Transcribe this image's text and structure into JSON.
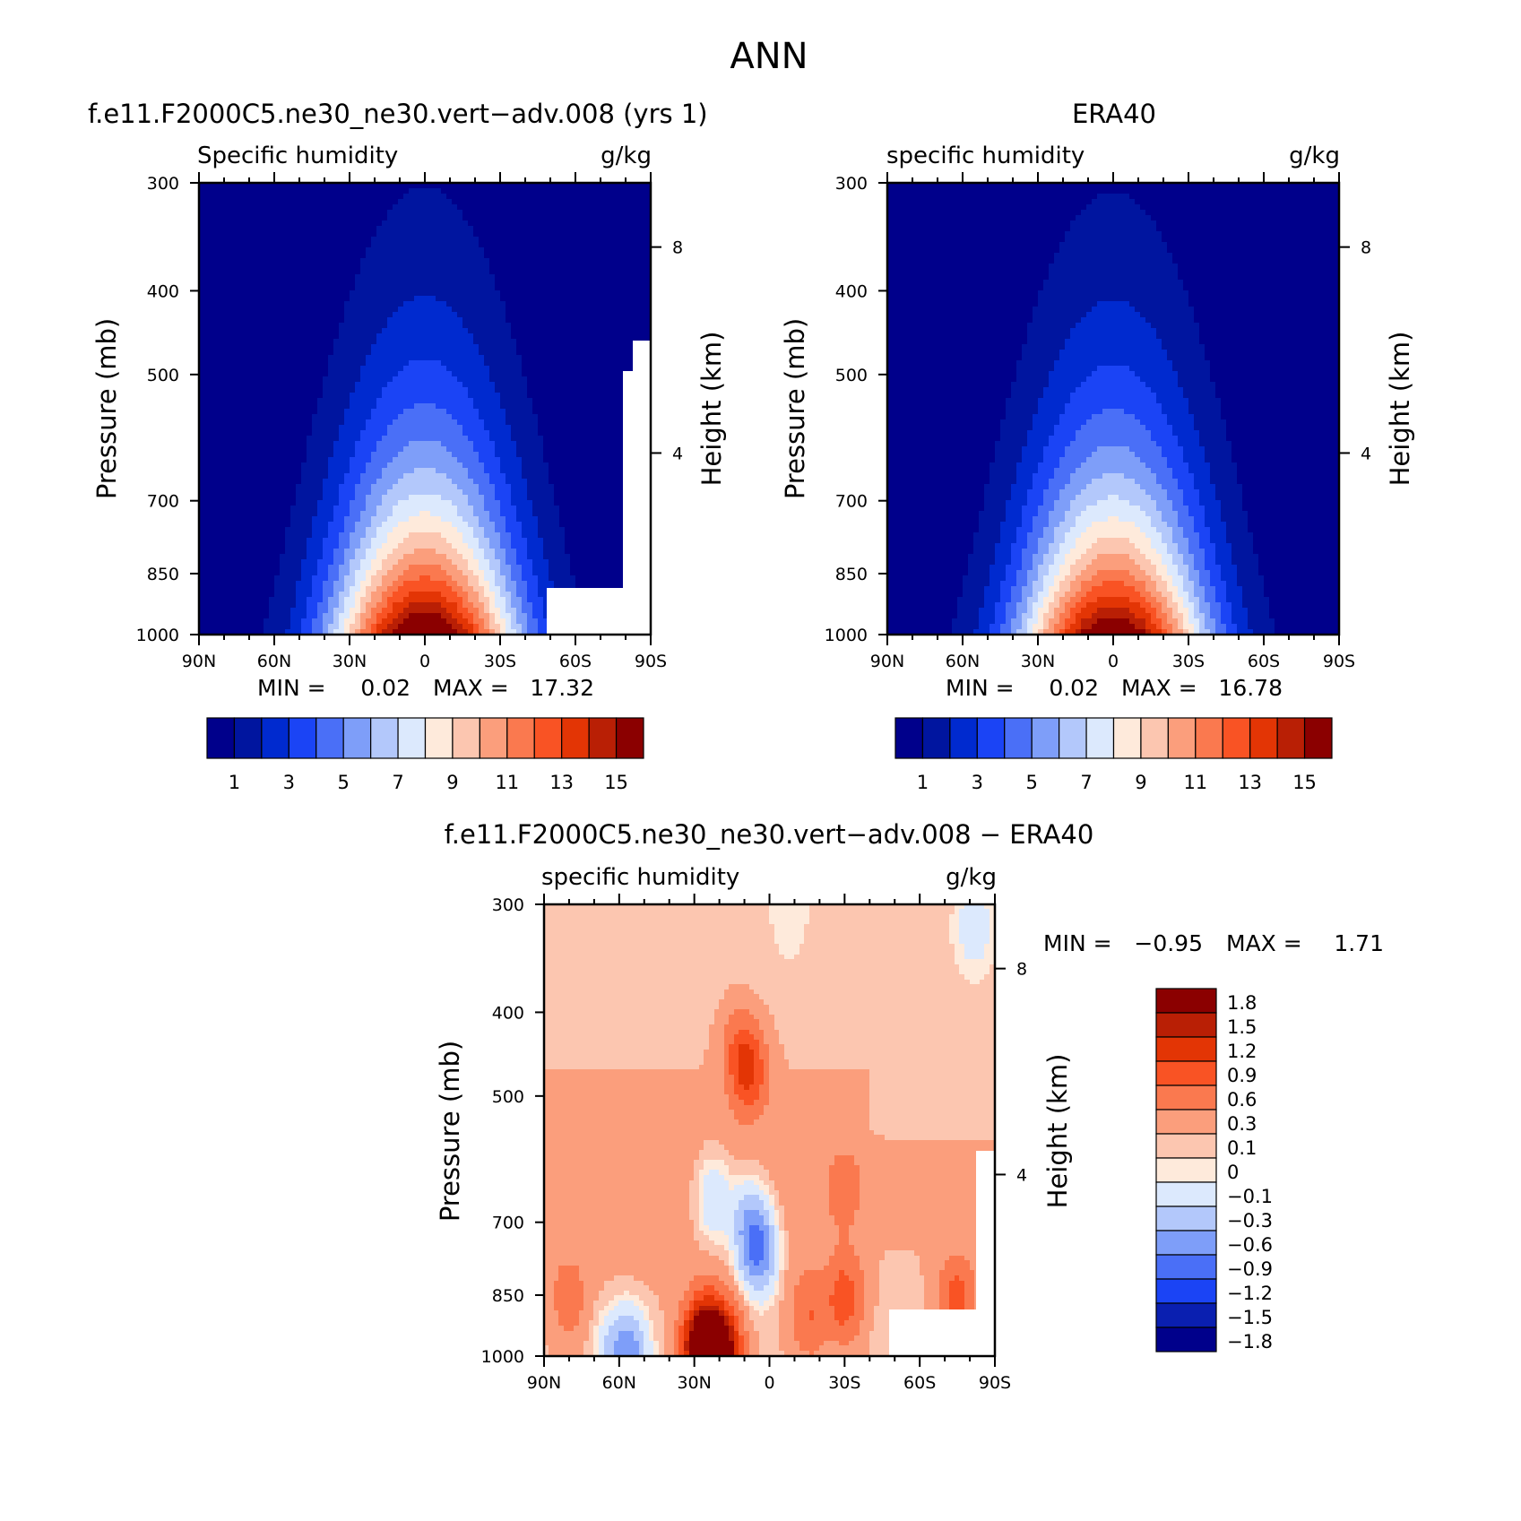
{
  "figure": {
    "title": "ANN"
  },
  "colors": {
    "seq": [
      "#00008b",
      "#00159f",
      "#002acf",
      "#1b44f5",
      "#4a6ff7",
      "#7e9ef9",
      "#b3c8fb",
      "#dce9fd",
      "#feeadb",
      "#fcc6b0",
      "#fb9e7c",
      "#fa794f",
      "#f95324",
      "#e33505",
      "#b91f05",
      "#8b0000"
    ],
    "div": [
      "#00008b",
      "#0a1fb0",
      "#1b44f5",
      "#4a6ff7",
      "#7e9ef9",
      "#b3c8fb",
      "#dce9fd",
      "#feeadb",
      "#fcc6b0",
      "#fb9e7c",
      "#fa794f",
      "#f95324",
      "#e33505",
      "#b91f05",
      "#8b0000"
    ]
  },
  "chart_data": [
    {
      "type": "heatmap",
      "id": "model",
      "title": "f.e11.F2000C5.ne30_ne30.vert-adv.008 (yrs 1)",
      "left_label": "Specific humidity",
      "units": "g/kg",
      "ylabel": "Pressure (mb)",
      "y2label": "Height (km)",
      "x_ticks": [
        "90N",
        "60N",
        "30N",
        "0",
        "30S",
        "60S",
        "90S"
      ],
      "x_values": [
        90,
        60,
        30,
        0,
        -30,
        -60,
        -90
      ],
      "y_ticks": [
        "300",
        "400",
        "500",
        "700",
        "850",
        "1000"
      ],
      "y_values": [
        300,
        400,
        500,
        700,
        850,
        1000
      ],
      "y2_ticks": [
        "8",
        "4"
      ],
      "y2_values": [
        8,
        4
      ],
      "min_label": "MIN =",
      "min_value": "0.02",
      "max_label": "MAX =",
      "max_value": "17.32",
      "surface_peak": 17.3,
      "levels": [
        0,
        1,
        2,
        3,
        4,
        5,
        6,
        7,
        8,
        9,
        10,
        11,
        12,
        13,
        14,
        15
      ],
      "colorbar_labels": [
        "1",
        "3",
        "5",
        "7",
        "9",
        "11",
        "13",
        "15"
      ],
      "colorbar_label_values": [
        1,
        3,
        5,
        7,
        9,
        11,
        13,
        15
      ]
    },
    {
      "type": "heatmap",
      "id": "obs",
      "title": "ERA40",
      "left_label": "specific humidity",
      "units": "g/kg",
      "ylabel": "Pressure (mb)",
      "y2label": "Height (km)",
      "x_ticks": [
        "90N",
        "60N",
        "30N",
        "0",
        "30S",
        "60S",
        "90S"
      ],
      "x_values": [
        90,
        60,
        30,
        0,
        -30,
        -60,
        -90
      ],
      "y_ticks": [
        "300",
        "400",
        "500",
        "700",
        "850",
        "1000"
      ],
      "y_values": [
        300,
        400,
        500,
        700,
        850,
        1000
      ],
      "y2_ticks": [
        "8",
        "4"
      ],
      "y2_values": [
        8,
        4
      ],
      "min_label": "MIN =",
      "min_value": "0.02",
      "max_label": "MAX =",
      "max_value": "16.78",
      "surface_peak": 16.8,
      "levels": [
        0,
        1,
        2,
        3,
        4,
        5,
        6,
        7,
        8,
        9,
        10,
        11,
        12,
        13,
        14,
        15
      ],
      "colorbar_labels": [
        "1",
        "3",
        "5",
        "7",
        "9",
        "11",
        "13",
        "15"
      ],
      "colorbar_label_values": [
        1,
        3,
        5,
        7,
        9,
        11,
        13,
        15
      ]
    },
    {
      "type": "heatmap",
      "id": "diff",
      "title": "f.e11.F2000C5.ne30_ne30.vert-adv.008 - ERA40",
      "left_label": "specific humidity",
      "units": "g/kg",
      "ylabel": "Pressure (mb)",
      "y2label": "Height (km)",
      "x_ticks": [
        "90N",
        "60N",
        "30N",
        "0",
        "30S",
        "60S",
        "90S"
      ],
      "x_values": [
        90,
        60,
        30,
        0,
        -30,
        -60,
        -90
      ],
      "y_ticks": [
        "300",
        "400",
        "500",
        "700",
        "850",
        "1000"
      ],
      "y_values": [
        300,
        400,
        500,
        700,
        850,
        1000
      ],
      "y2_ticks": [
        "8",
        "4"
      ],
      "y2_values": [
        8,
        4
      ],
      "min_label": "MIN =",
      "min_value": "-0.95",
      "max_label": "MAX =",
      "max_value": "1.71",
      "levels": [
        -1.8,
        -1.5,
        -1.2,
        -0.9,
        -0.6,
        -0.3,
        -0.1,
        0,
        0.1,
        0.3,
        0.6,
        0.9,
        1.2,
        1.5,
        1.8
      ],
      "colorbar_labels": [
        "1.8",
        "1.5",
        "1.2",
        "0.9",
        "0.6",
        "0.3",
        "0.1",
        "0",
        "-0.1",
        "-0.3",
        "-0.6",
        "-0.9",
        "-1.2",
        "-1.5",
        "-1.8"
      ],
      "colorbar_label_values": [
        1.8,
        1.5,
        1.2,
        0.9,
        0.6,
        0.3,
        0.1,
        0,
        -0.1,
        -0.3,
        -0.6,
        -0.9,
        -1.2,
        -1.5,
        -1.8
      ],
      "anomalies": [
        {
          "lat": 28,
          "p": 985,
          "value": 1.6
        },
        {
          "lat": 18,
          "p": 990,
          "value": 1.5
        },
        {
          "lat": 24,
          "p": 940,
          "value": 1.0
        },
        {
          "lat": 8,
          "p": 470,
          "value": 0.8
        },
        {
          "lat": 12,
          "p": 440,
          "value": 0.4
        },
        {
          "lat": 55,
          "p": 990,
          "value": -0.7
        },
        {
          "lat": 62,
          "p": 985,
          "value": -0.4
        },
        {
          "lat": 4,
          "p": 760,
          "value": -0.95
        },
        {
          "lat": 8,
          "p": 700,
          "value": -0.6
        },
        {
          "lat": 22,
          "p": 660,
          "value": -0.45
        },
        {
          "lat": -30,
          "p": 860,
          "value": 0.7
        },
        {
          "lat": -16,
          "p": 900,
          "value": 0.5
        },
        {
          "lat": -75,
          "p": 860,
          "value": 0.7
        },
        {
          "lat": -30,
          "p": 640,
          "value": 0.3
        },
        {
          "lat": -82,
          "p": 320,
          "value": -0.3
        },
        {
          "lat": -8,
          "p": 310,
          "value": -0.15
        },
        {
          "lat": 80,
          "p": 860,
          "value": 0.35
        }
      ]
    }
  ]
}
